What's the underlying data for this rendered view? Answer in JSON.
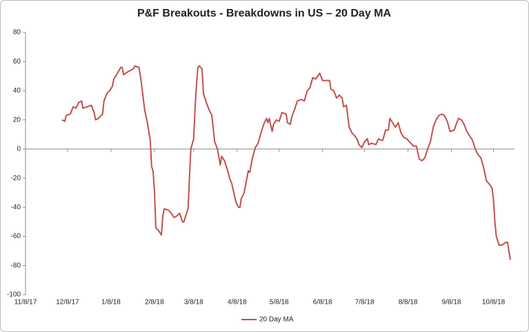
{
  "chart_data": {
    "type": "line",
    "title": "P&F Breakouts - Breakdowns in US – 20 Day MA",
    "x": [
      "12/4/17",
      "12/6/17",
      "12/7/17",
      "12/10/17",
      "12/12/17",
      "12/14/17",
      "12/16/17",
      "12/18/17",
      "12/19/17",
      "12/22/17",
      "12/25/17",
      "12/27/17",
      "12/28/17",
      "12/30/17",
      "1/2/18",
      "1/3/18",
      "1/5/18",
      "1/7/18",
      "1/9/18",
      "1/10/18",
      "1/12/18",
      "1/15/18",
      "1/16/18",
      "1/17/18",
      "1/20/18",
      "1/22/18",
      "1/24/18",
      "1/25/18",
      "1/28/18",
      "1/29/18",
      "1/30/18",
      "2/1/18",
      "2/3/18",
      "2/5/18",
      "2/6/18",
      "2/7/18",
      "2/8/18",
      "2/9/18",
      "2/11/18",
      "2/13/18",
      "2/14/18",
      "2/15/18",
      "2/18/18",
      "2/20/18",
      "2/22/18",
      "2/24/18",
      "2/26/18",
      "2/28/18",
      "3/1/18",
      "3/4/18",
      "3/5/18",
      "3/6/18",
      "3/8/18",
      "3/9/18",
      "3/10/18",
      "3/11/18",
      "3/12/18",
      "3/14/18",
      "3/15/18",
      "3/17/18",
      "3/19/18",
      "3/21/18",
      "3/23/18",
      "3/25/18",
      "3/27/18",
      "3/28/18",
      "3/30/18",
      "4/1/18",
      "4/3/18",
      "4/4/18",
      "4/5/18",
      "4/7/18",
      "4/9/18",
      "4/10/18",
      "4/11/18",
      "4/13/18",
      "4/16/18",
      "4/17/18",
      "4/19/18",
      "4/21/18",
      "4/23/18",
      "4/25/18",
      "4/27/18",
      "4/29/18",
      "4/30/18",
      "5/1/18",
      "5/3/18",
      "5/4/18",
      "5/6/18",
      "5/8/18",
      "5/10/18",
      "5/13/18",
      "5/14/18",
      "5/16/18",
      "5/17/18",
      "5/19/18",
      "5/21/18",
      "5/24/18",
      "5/26/18",
      "5/28/18",
      "5/30/18",
      "6/1/18",
      "6/3/18",
      "6/6/18",
      "6/8/18",
      "6/10/18",
      "6/11/18",
      "6/13/18",
      "6/14/18",
      "6/16/18",
      "6/18/18",
      "6/20/18",
      "6/22/18",
      "6/23/18",
      "6/25/18",
      "6/27/18",
      "6/29/18",
      "7/1/18",
      "7/3/18",
      "7/4/18",
      "7/6/18",
      "7/8/18",
      "7/10/18",
      "7/11/18",
      "7/13/18",
      "7/16/18",
      "7/18/18",
      "7/20/18",
      "7/21/18",
      "7/23/18",
      "7/25/18",
      "7/26/18",
      "7/28/18",
      "7/30/18",
      "8/1/18",
      "8/3/18",
      "8/5/18",
      "8/7/18",
      "8/9/18",
      "8/11/18",
      "8/12/18",
      "8/14/18",
      "8/16/18",
      "8/18/18",
      "8/20/18",
      "8/22/18",
      "8/24/18",
      "8/26/18",
      "8/28/18",
      "8/30/18",
      "9/1/18",
      "9/3/18",
      "9/5/18",
      "9/7/18",
      "9/10/18",
      "9/11/18",
      "9/13/18",
      "9/15/18",
      "9/17/18",
      "9/19/18",
      "9/21/18",
      "9/23/18",
      "9/25/18",
      "9/27/18",
      "9/29/18",
      "10/1/18",
      "10/3/18",
      "10/5/18",
      "10/7/18",
      "10/8/18",
      "10/9/18",
      "10/10/18",
      "10/12/18",
      "10/14/18",
      "10/17/18",
      "10/18/18",
      "10/20/18"
    ],
    "series": [
      {
        "name": "20 Day MA",
        "color": "#c0504d",
        "values": [
          20,
          19,
          23,
          24,
          29,
          28,
          32,
          33,
          28,
          29,
          30,
          25,
          20,
          21,
          24,
          33,
          38,
          40,
          43,
          48,
          51,
          56,
          56,
          51,
          53,
          54,
          55,
          57,
          56,
          50,
          43,
          27,
          18,
          6,
          -12,
          -15,
          -28,
          -54,
          -56,
          -59,
          -46,
          -41,
          -42,
          -44,
          -47,
          -46,
          -44,
          -50,
          -50,
          -41,
          -20,
          0,
          7,
          28,
          44,
          56,
          57,
          55,
          38,
          32,
          27,
          23,
          5,
          0,
          -11,
          -5,
          -8,
          -14,
          -21,
          -23,
          -27,
          -36,
          -40,
          -40,
          -34,
          -30,
          -15,
          -16,
          -6,
          1,
          4,
          11,
          17,
          21,
          18,
          21,
          12,
          17,
          20,
          19,
          25,
          24,
          18,
          17,
          22,
          27,
          33,
          34,
          33,
          40,
          42,
          49,
          48,
          52,
          47,
          47,
          47,
          47,
          41,
          40,
          35,
          37,
          35,
          29,
          30,
          15,
          11,
          9,
          6,
          3,
          1,
          5,
          7,
          3,
          4,
          3,
          7,
          6,
          6,
          13,
          13,
          21,
          18,
          15,
          18,
          11,
          8,
          7,
          5,
          3,
          2,
          2,
          -7,
          -8,
          -6,
          0,
          5,
          15,
          20,
          23,
          24,
          23,
          19,
          12,
          13,
          16,
          21,
          20,
          17,
          12,
          9,
          6,
          0,
          -4,
          -6,
          -13,
          -22,
          -24,
          -27,
          -35,
          -50,
          -60,
          -66,
          -66,
          -64,
          -64,
          -76
        ]
      }
    ],
    "xlim": [
      "11/8/17",
      "10/23/18"
    ],
    "xticks": [
      "11/8/17",
      "12/8/17",
      "1/8/18",
      "2/8/18",
      "3/8/18",
      "4/8/18",
      "5/8/18",
      "6/8/18",
      "7/8/18",
      "8/8/18",
      "9/8/18",
      "10/8/18"
    ],
    "ylim": [
      -100,
      80
    ],
    "yticks": [
      -100,
      -80,
      -60,
      -40,
      -20,
      0,
      20,
      40,
      60,
      80
    ],
    "grid": false,
    "legend": "bottom"
  }
}
